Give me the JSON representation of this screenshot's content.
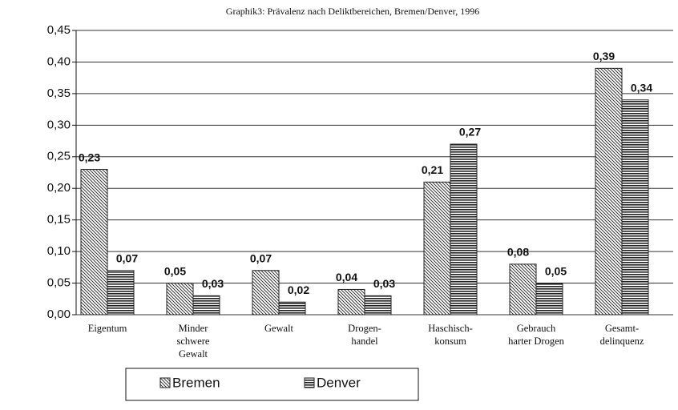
{
  "chart_data": {
    "type": "bar",
    "title": "Graphik3: Prävalenz nach Deliktbereichen, Bremen/Denver, 1996",
    "categories": [
      "Eigentum",
      "Minder\nschwere\nGewalt",
      "Gewalt",
      "Drogen-\nhandel",
      "Haschisch-\nkonsum",
      "Gebrauch\nharter Drogen",
      "Gesamt-\ndelinquenz"
    ],
    "series": [
      {
        "name": "Bremen",
        "color": "#222222",
        "pattern": "diagonal",
        "values": [
          0.23,
          0.05,
          0.07,
          0.04,
          0.21,
          0.08,
          0.39
        ],
        "value_labels": [
          "0,23",
          "0,05",
          "0,07",
          "0,04",
          "0,21",
          "0,08",
          "0,39"
        ]
      },
      {
        "name": "Denver",
        "color": "#222222",
        "pattern": "horizontal",
        "values": [
          0.07,
          0.03,
          0.02,
          0.03,
          0.27,
          0.05,
          0.34
        ],
        "value_labels": [
          "0,07",
          "0,03",
          "0,02",
          "0,03",
          "0,27",
          "0,05",
          "0,34"
        ]
      }
    ],
    "ylim": [
      0,
      0.45
    ],
    "yticks": [
      {
        "value": 0,
        "label": "0,00"
      },
      {
        "value": 0.05,
        "label": "0,05"
      },
      {
        "value": 0.1,
        "label": "0,10"
      },
      {
        "value": 0.15,
        "label": "0,15"
      },
      {
        "value": 0.2,
        "label": "0,20"
      },
      {
        "value": 0.25,
        "label": "0,25"
      },
      {
        "value": 0.3,
        "label": "0,30"
      },
      {
        "value": 0.35,
        "label": "0,35"
      },
      {
        "value": 0.4,
        "label": "0,40"
      },
      {
        "value": 0.45,
        "label": "0,45"
      }
    ],
    "grid": true
  }
}
